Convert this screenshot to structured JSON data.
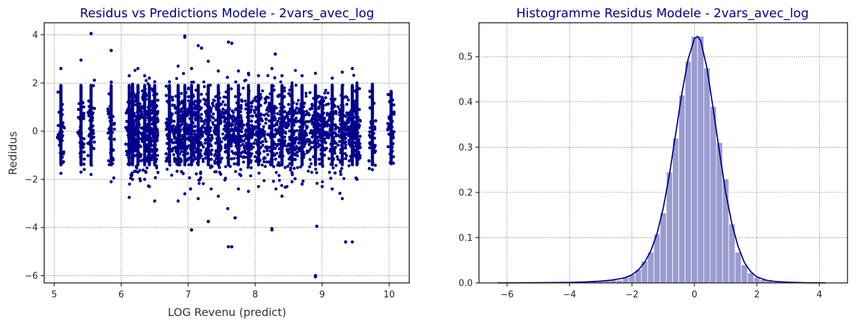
{
  "chart_data": [
    {
      "type": "scatter",
      "title": "Residus vs Predictions Modele - 2vars_avec_log",
      "xlabel": "LOG Revenu (predict)",
      "ylabel": "Redidus",
      "xlim": [
        4.85,
        10.3
      ],
      "ylim": [
        -6.3,
        4.5
      ],
      "xticks": [
        5,
        6,
        7,
        8,
        9,
        10
      ],
      "yticks": [
        -6,
        -4,
        -2,
        0,
        2,
        4
      ],
      "xtick_labels": [
        "5",
        "6",
        "7",
        "8",
        "9",
        "10"
      ],
      "ytick_labels": [
        "−6",
        "−4",
        "−2",
        "0",
        "2",
        "4"
      ],
      "grid": true,
      "color": "#00008b",
      "columns": [
        {
          "x": 5.1,
          "min": -1.75,
          "max": 2.6
        },
        {
          "x": 5.4,
          "min": -1.7,
          "max": 2.95
        },
        {
          "x": 5.55,
          "min": -1.8,
          "max": 4.05
        },
        {
          "x": 5.85,
          "min": -2.1,
          "max": 3.35
        },
        {
          "x": 6.12,
          "min": -2.75,
          "max": 2.3
        },
        {
          "x": 6.17,
          "min": -2.0,
          "max": 1.95
        },
        {
          "x": 6.25,
          "min": -1.7,
          "max": 2.6
        },
        {
          "x": 6.35,
          "min": -2.0,
          "max": 2.3
        },
        {
          "x": 6.42,
          "min": -2.3,
          "max": 2.2
        },
        {
          "x": 6.5,
          "min": -2.9,
          "max": 2.05
        },
        {
          "x": 6.72,
          "min": -1.3,
          "max": 2.05
        },
        {
          "x": 6.85,
          "min": -2.9,
          "max": 2.7
        },
        {
          "x": 6.95,
          "min": -2.6,
          "max": 3.9
        },
        {
          "x": 7.05,
          "min": -4.1,
          "max": 2.6
        },
        {
          "x": 7.15,
          "min": -2.8,
          "max": 3.55
        },
        {
          "x": 7.3,
          "min": -3.75,
          "max": 2.9
        },
        {
          "x": 7.45,
          "min": -2.7,
          "max": 2.5
        },
        {
          "x": 7.6,
          "min": -4.8,
          "max": 3.7
        },
        {
          "x": 7.75,
          "min": -2.4,
          "max": 2.5
        },
        {
          "x": 7.9,
          "min": -2.5,
          "max": 2.4
        },
        {
          "x": 8.05,
          "min": -2.3,
          "max": 2.3
        },
        {
          "x": 8.25,
          "min": -4.1,
          "max": 2.6
        },
        {
          "x": 8.4,
          "min": -2.7,
          "max": 2.3
        },
        {
          "x": 8.55,
          "min": -2.1,
          "max": 2.0
        },
        {
          "x": 8.7,
          "min": -2.2,
          "max": 2.3
        },
        {
          "x": 8.9,
          "min": -6.05,
          "max": 2.4
        },
        {
          "x": 9.0,
          "min": -2.3,
          "max": 1.4
        },
        {
          "x": 9.15,
          "min": -2.4,
          "max": 2.2
        },
        {
          "x": 9.3,
          "min": -2.8,
          "max": 2.45
        },
        {
          "x": 9.45,
          "min": -4.6,
          "max": 2.6
        },
        {
          "x": 9.52,
          "min": -2.0,
          "max": 2.0
        },
        {
          "x": 9.75,
          "min": -1.6,
          "max": 1.95
        },
        {
          "x": 10.03,
          "min": -1.35,
          "max": 1.65
        }
      ],
      "outliers": [
        {
          "x": 5.55,
          "y": 4.05
        },
        {
          "x": 6.95,
          "y": 3.95
        },
        {
          "x": 7.2,
          "y": 3.45
        },
        {
          "x": 7.65,
          "y": 3.65
        },
        {
          "x": 7.65,
          "y": -4.8
        },
        {
          "x": 7.05,
          "y": -4.1
        },
        {
          "x": 8.25,
          "y": -4.05
        },
        {
          "x": 8.9,
          "y": -6.0
        },
        {
          "x": 8.92,
          "y": -3.95
        },
        {
          "x": 9.35,
          "y": -4.6
        },
        {
          "x": 7.7,
          "y": -3.6
        },
        {
          "x": 7.3,
          "y": -3.75
        },
        {
          "x": 5.85,
          "y": 3.35
        },
        {
          "x": 8.3,
          "y": 3.2
        }
      ]
    },
    {
      "type": "histogram",
      "title": "Histogramme Residus Modele - 2vars_avec_log",
      "xlabel": "",
      "ylabel": "",
      "xlim": [
        -6.9,
        4.9
      ],
      "ylim": [
        0,
        0.575
      ],
      "xticks": [
        -6,
        -4,
        -2,
        0,
        2,
        4
      ],
      "yticks": [
        0,
        0.1,
        0.2,
        0.3,
        0.4,
        0.5
      ],
      "xtick_labels": [
        "−6",
        "−4",
        "−2",
        "0",
        "2",
        "4"
      ],
      "ytick_labels": [
        "0.0",
        "0.1",
        "0.2",
        "0.3",
        "0.4",
        "0.5"
      ],
      "grid": true,
      "bar_color": "#9a9cd0",
      "kde_color": "#00008b",
      "bin_width": 0.2,
      "bins": [
        {
          "x": -6.2,
          "y": 0.0005
        },
        {
          "x": -5.0,
          "y": 0.0005
        },
        {
          "x": -4.0,
          "y": 0.001
        },
        {
          "x": -3.6,
          "y": 0.002
        },
        {
          "x": -3.4,
          "y": 0.002
        },
        {
          "x": -3.2,
          "y": 0.003
        },
        {
          "x": -3.0,
          "y": 0.004
        },
        {
          "x": -2.8,
          "y": 0.007
        },
        {
          "x": -2.6,
          "y": 0.008
        },
        {
          "x": -2.4,
          "y": 0.006
        },
        {
          "x": -2.2,
          "y": 0.012
        },
        {
          "x": -2.0,
          "y": 0.018
        },
        {
          "x": -1.8,
          "y": 0.03
        },
        {
          "x": -1.6,
          "y": 0.048
        },
        {
          "x": -1.4,
          "y": 0.068
        },
        {
          "x": -1.2,
          "y": 0.108
        },
        {
          "x": -1.0,
          "y": 0.155
        },
        {
          "x": -0.8,
          "y": 0.245
        },
        {
          "x": -0.6,
          "y": 0.32
        },
        {
          "x": -0.4,
          "y": 0.415
        },
        {
          "x": -0.2,
          "y": 0.49
        },
        {
          "x": 0.0,
          "y": 0.545
        },
        {
          "x": 0.2,
          "y": 0.545
        },
        {
          "x": 0.4,
          "y": 0.475
        },
        {
          "x": 0.6,
          "y": 0.39
        },
        {
          "x": 0.8,
          "y": 0.31
        },
        {
          "x": 1.0,
          "y": 0.23
        },
        {
          "x": 1.2,
          "y": 0.13
        },
        {
          "x": 1.4,
          "y": 0.068
        },
        {
          "x": 1.6,
          "y": 0.04
        },
        {
          "x": 1.8,
          "y": 0.022
        },
        {
          "x": 2.0,
          "y": 0.012
        },
        {
          "x": 2.2,
          "y": 0.007
        },
        {
          "x": 2.4,
          "y": 0.004
        },
        {
          "x": 2.6,
          "y": 0.002
        },
        {
          "x": 2.8,
          "y": 0.0015
        },
        {
          "x": 3.2,
          "y": 0.001
        },
        {
          "x": 3.8,
          "y": 0.0005
        }
      ],
      "kde": {
        "x": [
          -6.3,
          -5.0,
          -4.0,
          -3.5,
          -3.0,
          -2.7,
          -2.4,
          -2.2,
          -2.0,
          -1.8,
          -1.6,
          -1.4,
          -1.2,
          -1.0,
          -0.8,
          -0.6,
          -0.4,
          -0.2,
          0.0,
          0.1,
          0.2,
          0.4,
          0.6,
          0.8,
          1.0,
          1.2,
          1.4,
          1.6,
          1.8,
          2.0,
          2.3,
          2.6,
          3.0,
          3.5,
          4.2
        ],
        "y": [
          0.0,
          0.0005,
          0.001,
          0.002,
          0.004,
          0.006,
          0.009,
          0.012,
          0.018,
          0.028,
          0.045,
          0.07,
          0.108,
          0.165,
          0.24,
          0.33,
          0.42,
          0.495,
          0.54,
          0.545,
          0.535,
          0.475,
          0.385,
          0.29,
          0.2,
          0.13,
          0.08,
          0.045,
          0.025,
          0.013,
          0.006,
          0.003,
          0.0015,
          0.0005,
          0.0
        ]
      }
    }
  ]
}
